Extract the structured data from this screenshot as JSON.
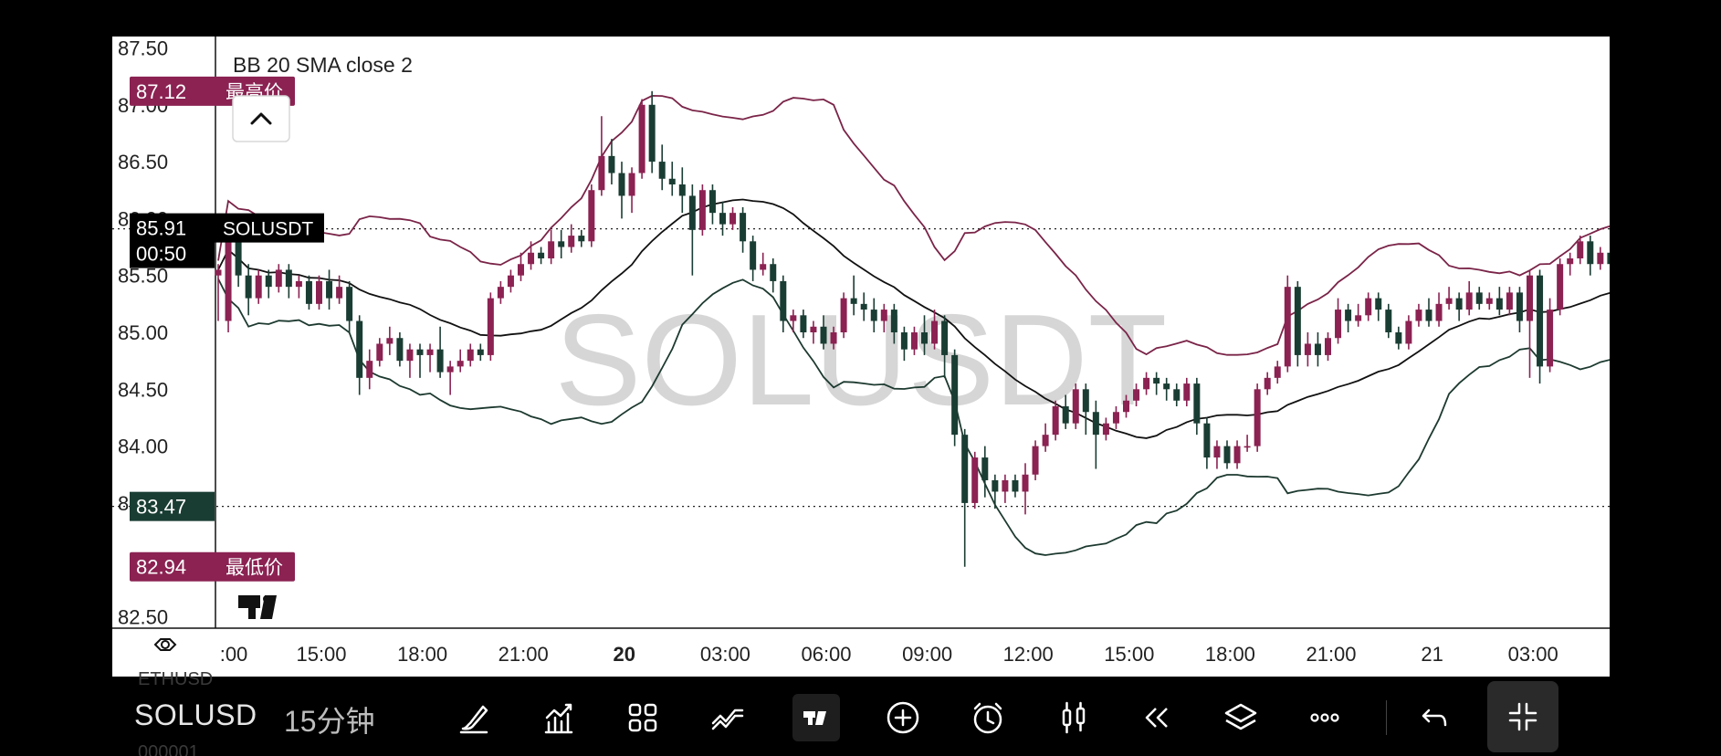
{
  "app": {
    "symbol": "SOLUSDT",
    "symbol_truncated": "SOLUSD",
    "interval": "15分钟",
    "watermark": "SOLUSDT",
    "indicator_label": "BB 20 SMA close 2",
    "ghost_symbol": "ETHUSD",
    "ghost_price": "000001"
  },
  "price_scale": {
    "ticks": [
      "87.50",
      "87.00",
      "86.50",
      "86.00",
      "85.50",
      "85.00",
      "84.50",
      "84.00",
      "83.50",
      "82.50"
    ]
  },
  "markers": {
    "high": {
      "price": "87.12",
      "label": "最高价"
    },
    "low": {
      "price": "82.94",
      "label": "最低价"
    },
    "last": {
      "price": "85.91",
      "countdown": "00:50",
      "label": "SOLUSDT"
    },
    "line2": {
      "price": "83.47"
    }
  },
  "time_axis": {
    "labels": [
      ":00",
      "15:00",
      "18:00",
      "21:00",
      "20",
      "03:00",
      "06:00",
      "09:00",
      "12:00",
      "15:00",
      "18:00",
      "21:00",
      "21",
      "03:00"
    ],
    "bold": [
      false,
      false,
      false,
      false,
      true,
      false,
      false,
      false,
      false,
      false,
      false,
      false,
      false,
      false
    ]
  },
  "toolbar": {
    "icons": [
      "brush-icon",
      "indicators-icon",
      "layout-icon",
      "compare-icon",
      "tradingview-icon",
      "add-icon",
      "alert-icon",
      "bar-replay-icon",
      "rewind-icon",
      "layers-icon",
      "more-icon",
      "undo-icon",
      "collapse-icon"
    ]
  },
  "colors": {
    "up": "#8b2252",
    "down": "#1a3d33",
    "band": "#7a2448",
    "basis": "#111111",
    "low_band": "#1d3a30"
  },
  "chart_data": {
    "type": "candlestick",
    "symbol": "SOLUSDT",
    "indicator": "BB 20 SMA close 2",
    "ylim": [
      82.4,
      87.6
    ],
    "y_ticks": [
      87.5,
      87.0,
      86.5,
      86.0,
      85.5,
      85.0,
      84.5,
      84.0,
      83.5,
      82.5
    ],
    "session_high": 87.12,
    "session_low": 82.94,
    "last_price": 85.91,
    "x_labels": [
      "12:00",
      "15:00",
      "18:00",
      "21:00",
      "20",
      "03:00",
      "06:00",
      "09:00",
      "12:00",
      "15:00",
      "18:00",
      "21:00",
      "21",
      "03:00"
    ],
    "candles_15m": [
      [
        85.5,
        85.55,
        85.1,
        85.6
      ],
      [
        85.1,
        85.9,
        85.0,
        85.95
      ],
      [
        85.9,
        85.5,
        85.4,
        85.95
      ],
      [
        85.5,
        85.3,
        85.15,
        85.6
      ],
      [
        85.3,
        85.5,
        85.25,
        85.55
      ],
      [
        85.5,
        85.4,
        85.3,
        85.55
      ],
      [
        85.4,
        85.55,
        85.35,
        85.6
      ],
      [
        85.55,
        85.4,
        85.3,
        85.6
      ],
      [
        85.4,
        85.45,
        85.3,
        85.5
      ],
      [
        85.45,
        85.25,
        85.2,
        85.5
      ],
      [
        85.25,
        85.45,
        85.2,
        85.5
      ],
      [
        85.45,
        85.3,
        85.2,
        85.55
      ],
      [
        85.3,
        85.4,
        85.25,
        85.5
      ],
      [
        85.4,
        85.1,
        85.0,
        85.45
      ],
      [
        85.1,
        84.6,
        84.45,
        85.15
      ],
      [
        84.6,
        84.75,
        84.5,
        84.85
      ],
      [
        84.75,
        84.9,
        84.7,
        84.95
      ],
      [
        84.9,
        84.95,
        84.8,
        85.05
      ],
      [
        84.95,
        84.75,
        84.7,
        85.0
      ],
      [
        84.75,
        84.85,
        84.6,
        84.9
      ],
      [
        84.85,
        84.8,
        84.6,
        84.9
      ],
      [
        84.8,
        84.85,
        84.65,
        84.9
      ],
      [
        84.85,
        84.65,
        84.6,
        85.05
      ],
      [
        84.65,
        84.7,
        84.45,
        84.75
      ],
      [
        84.7,
        84.75,
        84.65,
        84.85
      ],
      [
        84.75,
        84.85,
        84.7,
        84.9
      ],
      [
        84.85,
        84.8,
        84.75,
        84.9
      ],
      [
        84.8,
        85.3,
        84.75,
        85.35
      ],
      [
        85.3,
        85.4,
        85.25,
        85.45
      ],
      [
        85.4,
        85.5,
        85.35,
        85.55
      ],
      [
        85.5,
        85.6,
        85.45,
        85.7
      ],
      [
        85.6,
        85.7,
        85.55,
        85.8
      ],
      [
        85.7,
        85.65,
        85.6,
        85.75
      ],
      [
        85.65,
        85.8,
        85.6,
        85.9
      ],
      [
        85.8,
        85.75,
        85.65,
        85.9
      ],
      [
        85.75,
        85.85,
        85.7,
        85.95
      ],
      [
        85.85,
        85.8,
        85.75,
        85.9
      ],
      [
        85.8,
        86.25,
        85.75,
        86.3
      ],
      [
        86.25,
        86.55,
        86.2,
        86.9
      ],
      [
        86.55,
        86.4,
        86.3,
        86.7
      ],
      [
        86.4,
        86.2,
        86.0,
        86.5
      ],
      [
        86.2,
        86.4,
        86.05,
        86.45
      ],
      [
        86.4,
        87.0,
        86.35,
        87.05
      ],
      [
        87.0,
        86.5,
        86.4,
        87.12
      ],
      [
        86.5,
        86.35,
        86.25,
        86.65
      ],
      [
        86.35,
        86.3,
        86.2,
        86.5
      ],
      [
        86.3,
        86.2,
        86.05,
        86.45
      ],
      [
        86.2,
        85.9,
        85.5,
        86.3
      ],
      [
        85.9,
        86.25,
        85.85,
        86.3
      ],
      [
        86.25,
        86.05,
        85.95,
        86.3
      ],
      [
        86.05,
        85.95,
        85.85,
        86.15
      ],
      [
        85.95,
        86.05,
        85.9,
        86.1
      ],
      [
        86.05,
        85.8,
        85.7,
        86.1
      ],
      [
        85.8,
        85.55,
        85.45,
        85.85
      ],
      [
        85.55,
        85.6,
        85.5,
        85.7
      ],
      [
        85.6,
        85.45,
        85.35,
        85.65
      ],
      [
        85.45,
        85.1,
        85.0,
        85.5
      ],
      [
        85.1,
        85.15,
        85.0,
        85.2
      ],
      [
        85.15,
        85.0,
        84.95,
        85.2
      ],
      [
        85.0,
        85.05,
        84.9,
        85.1
      ],
      [
        85.05,
        84.9,
        84.85,
        85.15
      ],
      [
        84.9,
        85.0,
        84.85,
        85.05
      ],
      [
        85.0,
        85.3,
        84.95,
        85.35
      ],
      [
        85.3,
        85.25,
        85.15,
        85.5
      ],
      [
        85.25,
        85.2,
        85.1,
        85.35
      ],
      [
        85.2,
        85.1,
        85.0,
        85.3
      ],
      [
        85.1,
        85.2,
        85.0,
        85.25
      ],
      [
        85.2,
        85.0,
        84.9,
        85.25
      ],
      [
        85.0,
        84.85,
        84.75,
        85.05
      ],
      [
        84.85,
        85.0,
        84.8,
        85.05
      ],
      [
        85.0,
        84.9,
        84.8,
        85.15
      ],
      [
        84.9,
        85.1,
        84.85,
        85.2
      ],
      [
        85.1,
        84.8,
        84.6,
        85.15
      ],
      [
        84.8,
        84.1,
        84.0,
        84.85
      ],
      [
        84.1,
        83.5,
        82.94,
        84.15
      ],
      [
        83.5,
        83.9,
        83.45,
        83.95
      ],
      [
        83.9,
        83.7,
        83.55,
        84.0
      ],
      [
        83.7,
        83.6,
        83.45,
        83.75
      ],
      [
        83.6,
        83.7,
        83.5,
        83.75
      ],
      [
        83.7,
        83.6,
        83.55,
        83.75
      ],
      [
        83.6,
        83.75,
        83.4,
        83.85
      ],
      [
        83.75,
        84.0,
        83.7,
        84.05
      ],
      [
        84.0,
        84.1,
        83.95,
        84.2
      ],
      [
        84.1,
        84.35,
        84.05,
        84.4
      ],
      [
        84.35,
        84.2,
        84.15,
        84.45
      ],
      [
        84.2,
        84.5,
        84.15,
        84.55
      ],
      [
        84.5,
        84.3,
        84.1,
        84.55
      ],
      [
        84.3,
        84.1,
        83.8,
        84.4
      ],
      [
        84.1,
        84.2,
        84.05,
        84.25
      ],
      [
        84.2,
        84.3,
        84.15,
        84.35
      ],
      [
        84.3,
        84.4,
        84.25,
        84.45
      ],
      [
        84.4,
        84.5,
        84.35,
        84.55
      ],
      [
        84.5,
        84.6,
        84.45,
        84.65
      ],
      [
        84.6,
        84.55,
        84.45,
        84.65
      ],
      [
        84.55,
        84.5,
        84.4,
        84.6
      ],
      [
        84.5,
        84.4,
        84.35,
        84.55
      ],
      [
        84.4,
        84.55,
        84.35,
        84.6
      ],
      [
        84.55,
        84.2,
        84.1,
        84.6
      ],
      [
        84.2,
        83.9,
        83.8,
        84.25
      ],
      [
        83.9,
        84.0,
        83.8,
        84.05
      ],
      [
        84.0,
        83.85,
        83.8,
        84.05
      ],
      [
        83.85,
        84.0,
        83.8,
        84.05
      ],
      [
        84.0,
        84.0,
        83.95,
        84.1
      ],
      [
        84.0,
        84.5,
        83.95,
        84.55
      ],
      [
        84.5,
        84.6,
        84.45,
        84.65
      ],
      [
        84.6,
        84.7,
        84.55,
        84.75
      ],
      [
        84.7,
        85.4,
        84.65,
        85.5
      ],
      [
        85.4,
        84.8,
        84.7,
        85.45
      ],
      [
        84.8,
        84.9,
        84.7,
        85.0
      ],
      [
        84.9,
        84.8,
        84.7,
        85.0
      ],
      [
        84.8,
        84.95,
        84.75,
        85.0
      ],
      [
        84.95,
        85.2,
        84.9,
        85.3
      ],
      [
        85.2,
        85.1,
        85.0,
        85.25
      ],
      [
        85.1,
        85.15,
        85.05,
        85.25
      ],
      [
        85.15,
        85.3,
        85.1,
        85.35
      ],
      [
        85.3,
        85.2,
        85.1,
        85.35
      ],
      [
        85.2,
        85.0,
        84.95,
        85.25
      ],
      [
        85.0,
        84.9,
        84.85,
        85.05
      ],
      [
        84.9,
        85.1,
        84.85,
        85.15
      ],
      [
        85.1,
        85.2,
        85.05,
        85.25
      ],
      [
        85.2,
        85.1,
        85.05,
        85.3
      ],
      [
        85.1,
        85.25,
        85.05,
        85.35
      ],
      [
        85.25,
        85.3,
        85.2,
        85.4
      ],
      [
        85.3,
        85.2,
        85.1,
        85.35
      ],
      [
        85.2,
        85.35,
        85.15,
        85.45
      ],
      [
        85.35,
        85.25,
        85.2,
        85.4
      ],
      [
        85.25,
        85.3,
        85.2,
        85.35
      ],
      [
        85.3,
        85.2,
        85.15,
        85.4
      ],
      [
        85.2,
        85.35,
        85.15,
        85.4
      ],
      [
        85.35,
        85.1,
        85.0,
        85.4
      ],
      [
        85.1,
        85.5,
        84.6,
        85.55
      ],
      [
        85.5,
        84.7,
        84.55,
        85.55
      ],
      [
        84.7,
        85.2,
        84.65,
        85.3
      ],
      [
        85.2,
        85.6,
        85.15,
        85.65
      ],
      [
        85.6,
        85.65,
        85.5,
        85.7
      ],
      [
        85.65,
        85.8,
        85.6,
        85.85
      ],
      [
        85.8,
        85.6,
        85.5,
        85.85
      ],
      [
        85.6,
        85.7,
        85.55,
        85.75
      ],
      [
        85.7,
        85.6,
        85.55,
        85.8
      ],
      [
        85.6,
        85.3,
        85.25,
        85.65
      ],
      [
        85.3,
        85.7,
        85.25,
        85.75
      ],
      [
        85.7,
        86.0,
        85.65,
        86.05
      ],
      [
        86.0,
        85.9,
        85.8,
        86.05
      ],
      [
        85.9,
        85.8,
        85.7,
        86.0
      ],
      [
        85.8,
        86.0,
        85.75,
        86.05
      ],
      [
        86.0,
        85.9,
        85.8,
        86.1
      ],
      [
        85.9,
        86.0,
        85.85,
        86.05
      ],
      [
        86.0,
        85.95,
        85.85,
        86.05
      ],
      [
        85.95,
        85.85,
        85.8,
        86.0
      ],
      [
        85.85,
        85.9,
        85.8,
        85.95
      ],
      [
        85.9,
        85.95,
        85.75,
        86.05
      ]
    ]
  }
}
